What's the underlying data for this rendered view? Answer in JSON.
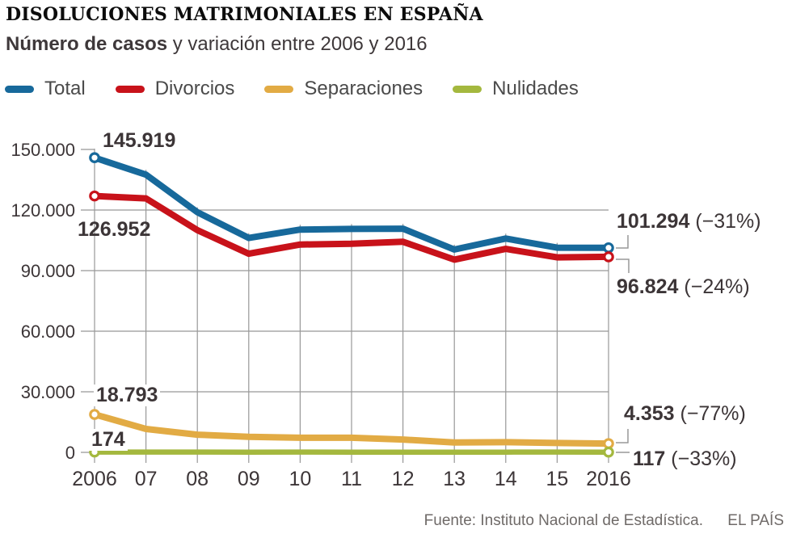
{
  "header": {
    "title": "DISOLUCIONES MATRIMONIALES EN ESPAÑA",
    "subtitle_bold": "Número de casos",
    "subtitle_rest": " y variación entre 2006 y 2016"
  },
  "legend": [
    {
      "label": "Total",
      "color": "#17699b"
    },
    {
      "label": "Divorcios",
      "color": "#c8121a"
    },
    {
      "label": "Separaciones",
      "color": "#e2ab44"
    },
    {
      "label": "Nulidades",
      "color": "#a4b83e"
    }
  ],
  "chart_data": {
    "type": "line",
    "x": [
      2006,
      2007,
      2008,
      2009,
      2010,
      2011,
      2012,
      2013,
      2014,
      2015,
      2016
    ],
    "x_tick_labels": [
      "2006",
      "07",
      "08",
      "09",
      "10",
      "11",
      "12",
      "13",
      "14",
      "15",
      "2016"
    ],
    "series": [
      {
        "name": "Total",
        "color": "#17699b",
        "width": 8,
        "values": [
          145919,
          137510,
          118939,
          106166,
          110321,
          110651,
          110764,
          100437,
          105893,
          101357,
          101294
        ]
      },
      {
        "name": "Divorcios",
        "color": "#c8121a",
        "width": 8,
        "values": [
          126952,
          125777,
          110036,
          98359,
          102933,
          103290,
          104262,
          95427,
          100746,
          96562,
          96824
        ]
      },
      {
        "name": "Separaciones",
        "color": "#e2ab44",
        "width": 8,
        "values": [
          18793,
          11583,
          8761,
          7680,
          7248,
          7229,
          6369,
          4900,
          5034,
          4652,
          4353
        ]
      },
      {
        "name": "Nulidades",
        "color": "#a4b83e",
        "width": 6.5,
        "values": [
          174,
          150,
          142,
          127,
          140,
          132,
          133,
          110,
          113,
          143,
          117
        ]
      }
    ],
    "yticks": [
      0,
      30000,
      60000,
      90000,
      120000,
      150000
    ],
    "ytick_labels": [
      "0",
      "30.000",
      "60.000",
      "90.000",
      "120.000",
      "150.000"
    ],
    "ylim": [
      0,
      150000
    ],
    "grid": true,
    "grid_color": "#989898",
    "legend_position": "top"
  },
  "annotations": {
    "total_start": "145.919",
    "divorcios_start": "126.952",
    "separaciones_start": "18.793",
    "nulidades_start": "174",
    "total_end": "101.294",
    "total_end_pct": " (−31%)",
    "divorcios_end": "96.824",
    "divorcios_end_pct": " (−24%)",
    "separaciones_end": "4.353",
    "separaciones_end_pct": " (−77%)",
    "nulidades_end": "117",
    "nulidades_end_pct": " (−33%)"
  },
  "footer": {
    "source": "Fuente: Instituto Nacional de Estadística.",
    "brand": "EL PAÍS"
  }
}
